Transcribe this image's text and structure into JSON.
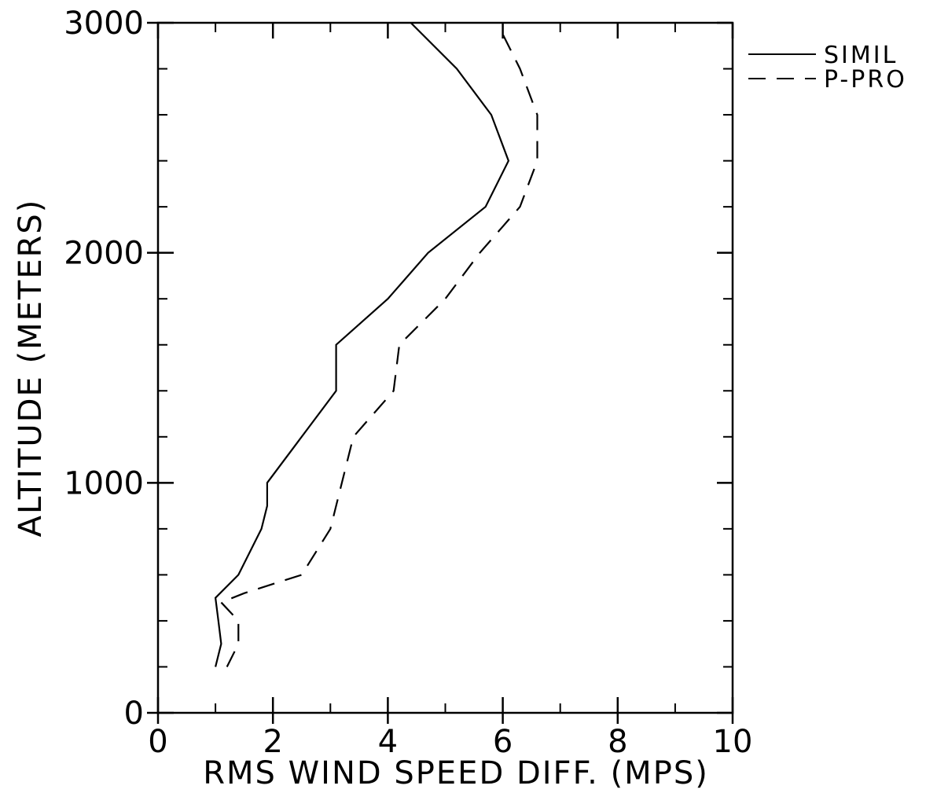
{
  "chart_data": {
    "type": "line",
    "title": "",
    "xlabel": "RMS WIND SPEED DIFF. (MPS)",
    "ylabel": "ALTITUDE (METERS)",
    "xlim": [
      0,
      10
    ],
    "ylim": [
      0,
      3000
    ],
    "x_ticks": [
      0,
      2,
      4,
      6,
      8,
      10
    ],
    "x_tick_labels": [
      "0",
      "2",
      "4",
      "6",
      "8",
      "10"
    ],
    "x_minor_step": 1,
    "y_ticks": [
      0,
      1000,
      2000,
      3000
    ],
    "y_tick_labels": [
      "0",
      "1000",
      "2000",
      "3000"
    ],
    "y_minor_step": 200,
    "grid": false,
    "legend_position": "top-right, outside plot",
    "series": [
      {
        "name": "SIMIL",
        "style": "solid",
        "color": "#000000",
        "points": [
          [
            1.0,
            200
          ],
          [
            1.1,
            300
          ],
          [
            1.05,
            400
          ],
          [
            1.0,
            500
          ],
          [
            1.4,
            600
          ],
          [
            1.8,
            800
          ],
          [
            1.9,
            900
          ],
          [
            1.9,
            1000
          ],
          [
            3.1,
            1400
          ],
          [
            3.1,
            1600
          ],
          [
            4.0,
            1800
          ],
          [
            4.7,
            2000
          ],
          [
            5.7,
            2200
          ],
          [
            6.1,
            2400
          ],
          [
            5.8,
            2600
          ],
          [
            5.2,
            2800
          ],
          [
            4.4,
            3000
          ]
        ]
      },
      {
        "name": "P-PRO",
        "style": "dashed",
        "color": "#000000",
        "points": [
          [
            1.2,
            200
          ],
          [
            1.4,
            300
          ],
          [
            1.4,
            400
          ],
          [
            1.1,
            480
          ],
          [
            1.5,
            520
          ],
          [
            2.5,
            600
          ],
          [
            3.0,
            800
          ],
          [
            3.2,
            1000
          ],
          [
            3.4,
            1200
          ],
          [
            4.1,
            1400
          ],
          [
            4.2,
            1600
          ],
          [
            5.0,
            1800
          ],
          [
            5.6,
            2000
          ],
          [
            6.3,
            2200
          ],
          [
            6.6,
            2400
          ],
          [
            6.6,
            2600
          ],
          [
            6.3,
            2800
          ],
          [
            6.0,
            2950
          ]
        ]
      }
    ]
  }
}
